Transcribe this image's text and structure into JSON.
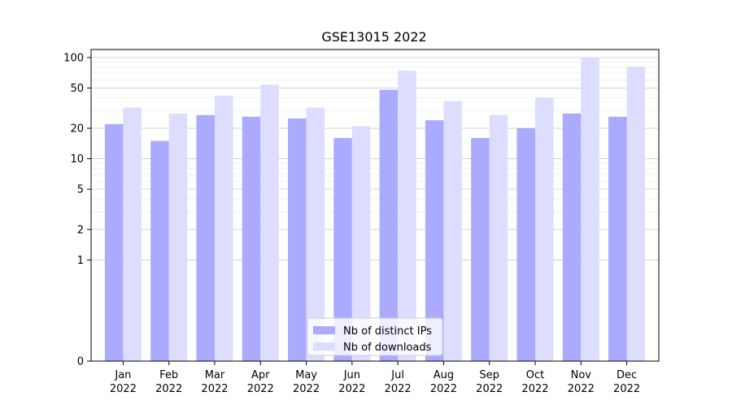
{
  "chart_data": {
    "type": "bar",
    "title": "GSE13015 2022",
    "xlabel": "",
    "ylabel": "",
    "categories": [
      {
        "month": "Jan",
        "year": "2022"
      },
      {
        "month": "Feb",
        "year": "2022"
      },
      {
        "month": "Mar",
        "year": "2022"
      },
      {
        "month": "Apr",
        "year": "2022"
      },
      {
        "month": "May",
        "year": "2022"
      },
      {
        "month": "Jun",
        "year": "2022"
      },
      {
        "month": "Jul",
        "year": "2022"
      },
      {
        "month": "Aug",
        "year": "2022"
      },
      {
        "month": "Sep",
        "year": "2022"
      },
      {
        "month": "Oct",
        "year": "2022"
      },
      {
        "month": "Nov",
        "year": "2022"
      },
      {
        "month": "Dec",
        "year": "2022"
      }
    ],
    "series": [
      {
        "name": "Nb of distinct IPs",
        "color": "#aaaaff",
        "values": [
          22,
          15,
          27,
          26,
          25,
          16,
          48,
          24,
          16,
          20,
          28,
          26
        ]
      },
      {
        "name": "Nb of downloads",
        "color": "#ddddff",
        "values": [
          32,
          28,
          42,
          54,
          32,
          21,
          74,
          37,
          27,
          40,
          100,
          81
        ]
      }
    ],
    "y_scale": "symlog",
    "ylim": [
      0,
      120
    ],
    "y_ticks": [
      {
        "value": 0,
        "label": "0"
      },
      {
        "value": 1,
        "label": "1"
      },
      {
        "value": 2,
        "label": "2"
      },
      {
        "value": 5,
        "label": "5"
      },
      {
        "value": 10,
        "label": "10"
      },
      {
        "value": 20,
        "label": "20"
      },
      {
        "value": 50,
        "label": "50"
      },
      {
        "value": 100,
        "label": "100"
      }
    ],
    "grid": true,
    "legend_position": "bottom-center"
  }
}
